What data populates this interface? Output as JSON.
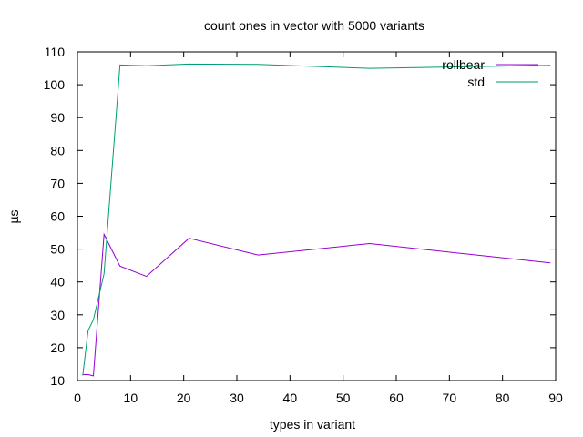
{
  "chart_data": {
    "type": "line",
    "title": "count ones in vector with 5000 variants",
    "xlabel": "types in variant",
    "ylabel": "µs",
    "xlim": [
      0,
      90
    ],
    "ylim": [
      10,
      110
    ],
    "xticks": [
      0,
      10,
      20,
      30,
      40,
      50,
      60,
      70,
      80,
      90
    ],
    "yticks": [
      10,
      20,
      30,
      40,
      50,
      60,
      70,
      80,
      90,
      100,
      110
    ],
    "grid": false,
    "legend_position": "top-right",
    "series": [
      {
        "name": "rollbear",
        "color": "#9400d3",
        "x": [
          1,
          2,
          3,
          5,
          8,
          13,
          21,
          34,
          55,
          89
        ],
        "y": [
          11.8,
          11.8,
          11.4,
          54.5,
          44.8,
          41.7,
          53.3,
          48.2,
          51.7,
          45.8
        ]
      },
      {
        "name": "std",
        "color": "#009e73",
        "x": [
          1,
          2,
          3,
          5,
          8,
          13,
          21,
          34,
          55,
          89
        ],
        "y": [
          11.5,
          25.2,
          28.5,
          42.5,
          106.0,
          105.8,
          106.3,
          106.2,
          105.0,
          105.9
        ]
      }
    ]
  }
}
